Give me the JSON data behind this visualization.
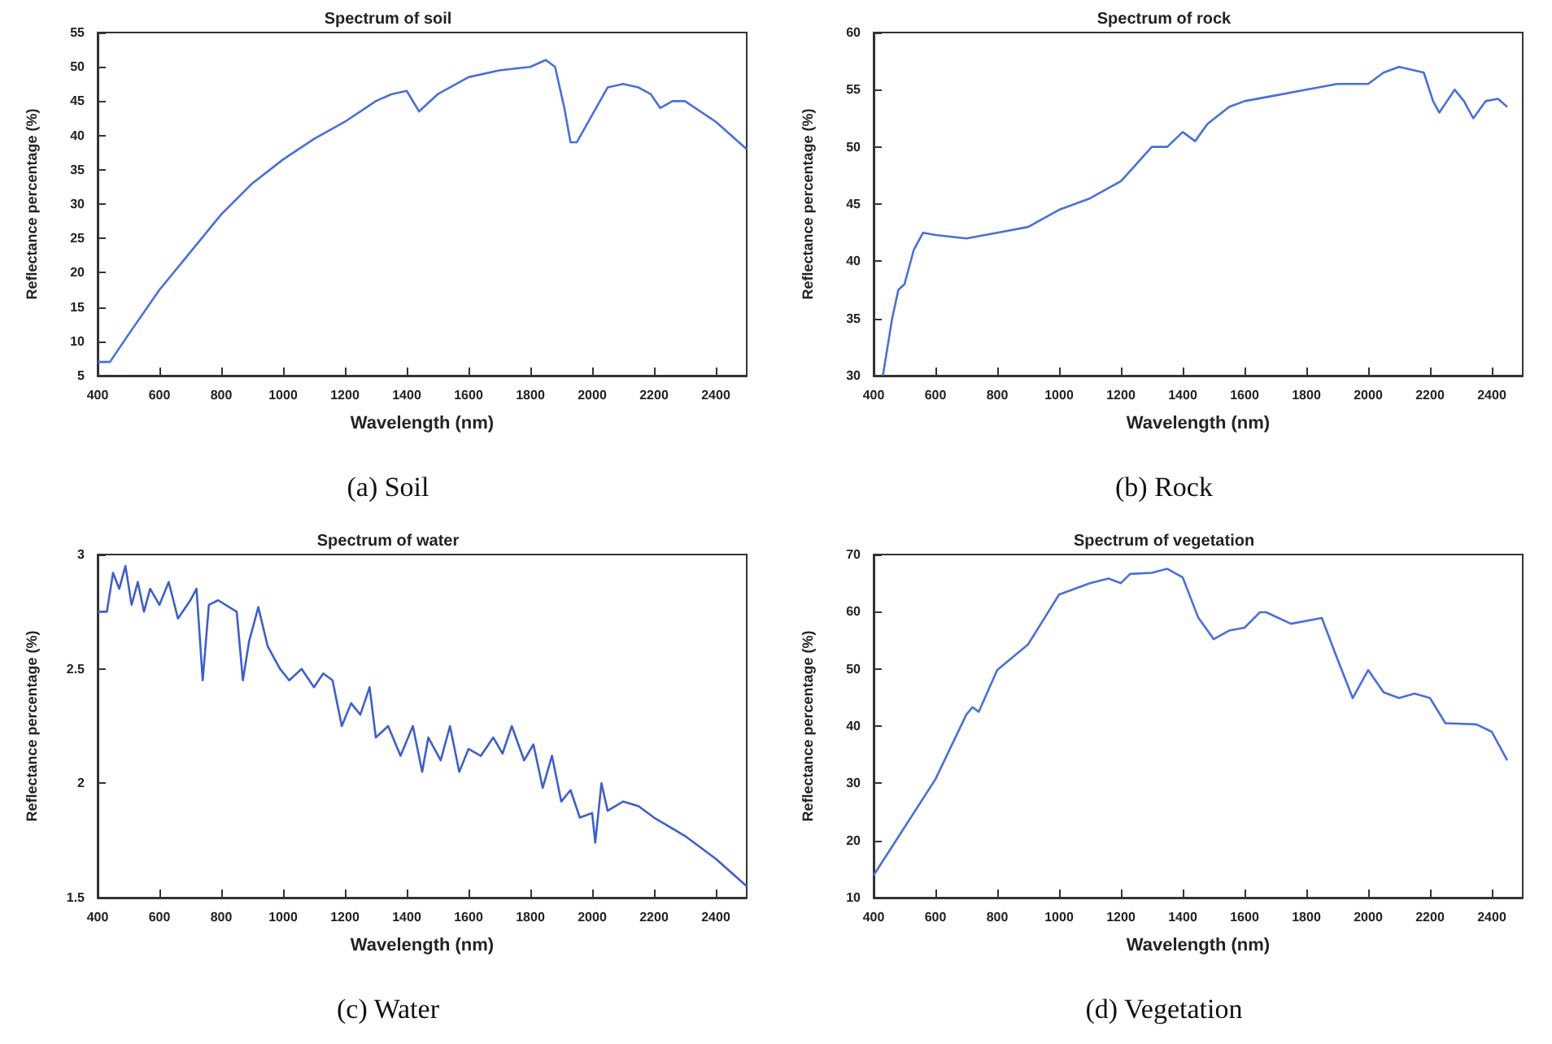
{
  "chart_data": [
    {
      "type": "line",
      "title": "Spectrum of soil",
      "xlabel": "Wavelength (nm)",
      "ylabel": "Reflectance percentage (%)",
      "annotations": [
        "(a) Soil"
      ],
      "xlim": [
        400,
        2500
      ],
      "xticks": [
        400,
        600,
        800,
        1000,
        1200,
        1400,
        1600,
        1800,
        2000,
        2200,
        2400
      ],
      "ylim": [
        5,
        55
      ],
      "yticks": [
        5,
        10,
        15,
        20,
        25,
        30,
        35,
        40,
        45,
        50,
        55
      ],
      "grid": false,
      "marker": "none",
      "line_style": "solid",
      "series": [
        {
          "color": "#4a6fd8",
          "x": [
            400,
            440,
            500,
            600,
            700,
            800,
            900,
            1000,
            1100,
            1200,
            1300,
            1350,
            1400,
            1440,
            1500,
            1600,
            1700,
            1800,
            1850,
            1880,
            1910,
            1930,
            1950,
            2000,
            2050,
            2100,
            2150,
            2190,
            2220,
            2260,
            2300,
            2400,
            2500
          ],
          "values": [
            7,
            7,
            11,
            17.5,
            23,
            28.5,
            33,
            36.5,
            39.5,
            42,
            45,
            46,
            46.5,
            43.5,
            46,
            48.5,
            49.5,
            50,
            51,
            50,
            44,
            39,
            39,
            43,
            47,
            47.5,
            47,
            46,
            44,
            45,
            45,
            42,
            38
          ]
        }
      ]
    },
    {
      "type": "line",
      "title": "Spectrum of rock",
      "xlabel": "Wavelength (nm)",
      "ylabel": "Reflectance percentage (%)",
      "annotations": [
        "(b) Rock"
      ],
      "xlim": [
        400,
        2500
      ],
      "xticks": [
        400,
        600,
        800,
        1000,
        1200,
        1400,
        1600,
        1800,
        2000,
        2200,
        2400
      ],
      "ylim": [
        30,
        60
      ],
      "yticks": [
        30,
        35,
        40,
        45,
        50,
        55,
        60
      ],
      "grid": false,
      "marker": "none",
      "line_style": "solid",
      "series": [
        {
          "color": "#4a6fd8",
          "x": [
            430,
            460,
            480,
            500,
            530,
            560,
            600,
            700,
            800,
            900,
            1000,
            1100,
            1200,
            1250,
            1300,
            1350,
            1400,
            1440,
            1480,
            1550,
            1600,
            1700,
            1800,
            1900,
            2000,
            2050,
            2100,
            2180,
            2210,
            2230,
            2280,
            2310,
            2340,
            2380,
            2420,
            2450
          ],
          "values": [
            30,
            35,
            37.5,
            38,
            41,
            42.5,
            42.3,
            42,
            42.5,
            43,
            44.5,
            45.5,
            47,
            48.5,
            50,
            50,
            51.3,
            50.5,
            52,
            53.5,
            54,
            54.5,
            55,
            55.5,
            55.5,
            56.5,
            57,
            56.5,
            54,
            53,
            55,
            54,
            52.5,
            54,
            54.2,
            53.5
          ]
        }
      ]
    },
    {
      "type": "line",
      "title": "Spectrum of water",
      "xlabel": "Wavelength (nm)",
      "ylabel": "Reflectance percentage (%)",
      "annotations": [
        "(c) Water"
      ],
      "xlim": [
        400,
        2500
      ],
      "xticks": [
        400,
        600,
        800,
        1000,
        1200,
        1400,
        1600,
        1800,
        2000,
        2200,
        2400
      ],
      "ylim": [
        1.5,
        3
      ],
      "yticks": [
        1.5,
        2,
        2.5,
        3
      ],
      "grid": false,
      "marker": "none",
      "line_style": "solid",
      "series": [
        {
          "color": "#3f5fc8",
          "x": [
            400,
            430,
            450,
            470,
            490,
            510,
            530,
            550,
            570,
            600,
            630,
            660,
            700,
            720,
            740,
            760,
            790,
            850,
            870,
            890,
            920,
            950,
            990,
            1020,
            1060,
            1100,
            1130,
            1160,
            1190,
            1220,
            1250,
            1280,
            1300,
            1340,
            1380,
            1420,
            1450,
            1470,
            1510,
            1540,
            1570,
            1600,
            1640,
            1680,
            1710,
            1740,
            1780,
            1810,
            1840,
            1870,
            1900,
            1930,
            1960,
            2000,
            2010,
            2030,
            2050,
            2100,
            2150,
            2200,
            2300,
            2400,
            2500
          ],
          "values": [
            2.75,
            2.75,
            2.92,
            2.85,
            2.95,
            2.78,
            2.88,
            2.75,
            2.85,
            2.78,
            2.88,
            2.72,
            2.8,
            2.85,
            2.45,
            2.78,
            2.8,
            2.75,
            2.45,
            2.62,
            2.77,
            2.6,
            2.5,
            2.45,
            2.5,
            2.42,
            2.48,
            2.45,
            2.25,
            2.35,
            2.3,
            2.42,
            2.2,
            2.25,
            2.12,
            2.25,
            2.05,
            2.2,
            2.1,
            2.25,
            2.05,
            2.15,
            2.12,
            2.2,
            2.13,
            2.25,
            2.1,
            2.17,
            1.98,
            2.12,
            1.92,
            1.97,
            1.85,
            1.87,
            1.74,
            2.0,
            1.88,
            1.92,
            1.9,
            1.85,
            1.77,
            1.67,
            1.55
          ]
        }
      ]
    },
    {
      "type": "line",
      "title": "Spectrum of vegetation",
      "xlabel": "Wavelength (nm)",
      "ylabel": "Reflectance percentage (%)",
      "annotations": [
        "(d) Vegetation"
      ],
      "xlim": [
        400,
        2500
      ],
      "xticks": [
        400,
        600,
        800,
        1000,
        1200,
        1400,
        1600,
        1800,
        2000,
        2200,
        2400
      ],
      "ylim": [
        10,
        70
      ],
      "yticks": [
        10,
        20,
        30,
        40,
        50,
        60,
        70
      ],
      "grid": false,
      "marker": "none",
      "line_style": "solid",
      "series": [
        {
          "color": "#4a6fd8",
          "x": [
            400,
            500,
            600,
            700,
            720,
            740,
            800,
            900,
            1000,
            1100,
            1160,
            1200,
            1230,
            1300,
            1350,
            1400,
            1450,
            1500,
            1550,
            1600,
            1650,
            1670,
            1750,
            1850,
            1900,
            1950,
            2000,
            2050,
            2100,
            2150,
            2200,
            2250,
            2350,
            2400,
            2450
          ],
          "values": [
            13.9,
            22.3,
            30.7,
            42,
            43.3,
            42.5,
            49.8,
            54.3,
            63,
            65,
            65.8,
            65,
            66.6,
            66.8,
            67.5,
            66,
            59,
            55.2,
            56.7,
            57.2,
            59.9,
            59.9,
            57.9,
            58.9,
            51.8,
            44.9,
            49.8,
            45.9,
            44.9,
            45.7,
            44.9,
            40.5,
            40.3,
            39,
            34
          ]
        }
      ]
    }
  ]
}
